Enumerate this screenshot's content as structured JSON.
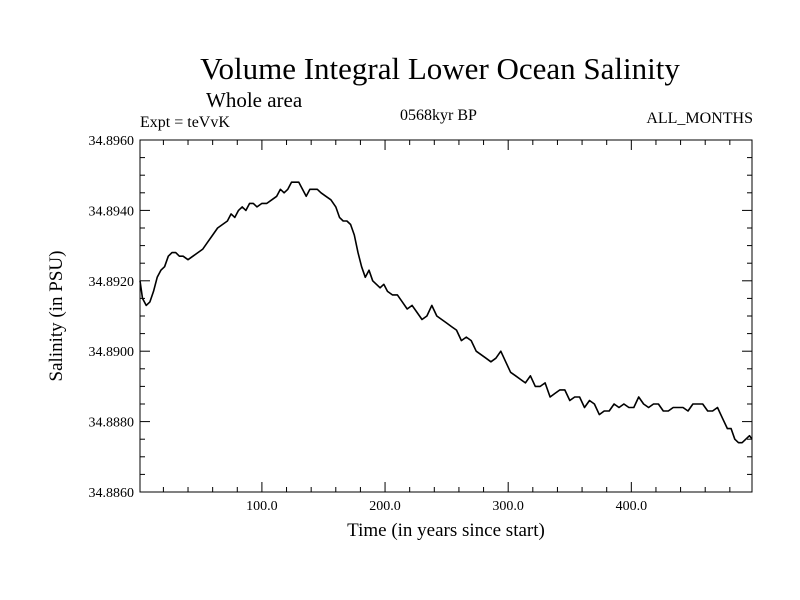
{
  "header": {
    "title": "Volume Integral Lower Ocean Salinity",
    "subtitle": "Whole area",
    "expt": "Expt = teVvK",
    "period": "0568kyr BP",
    "months": "ALL_MONTHS"
  },
  "colors": {
    "line": "#000000",
    "background": "#ffffff"
  },
  "chart_data": {
    "type": "line",
    "title": "Volume Integral Lower Ocean Salinity",
    "subtitle": "Whole area",
    "xlabel": "Time (in years since start)",
    "ylabel": "Salinity (in PSU)",
    "xlim": [
      1,
      498
    ],
    "ylim": [
      34.886,
      34.896
    ],
    "grid": false,
    "legend": "none",
    "x_ticks": [
      100,
      200,
      300,
      400
    ],
    "x_tick_labels": [
      "100.0",
      "200.0",
      "300.0",
      "400.0"
    ],
    "y_ticks": [
      34.886,
      34.888,
      34.89,
      34.892,
      34.894,
      34.896
    ],
    "y_tick_labels": [
      "34.8860",
      "34.8880",
      "34.8900",
      "34.8920",
      "34.8940",
      "34.8960"
    ],
    "series": [
      {
        "x": [
          1,
          3,
          6,
          9,
          12,
          15,
          18,
          21,
          24,
          27,
          30,
          33,
          36,
          40,
          44,
          48,
          52,
          56,
          60,
          64,
          68,
          72,
          75,
          78,
          81,
          84,
          87,
          90,
          93,
          96,
          100,
          104,
          108,
          112,
          115,
          118,
          121,
          124,
          127,
          130,
          133,
          136,
          139,
          142,
          145,
          148,
          152,
          156,
          160,
          163,
          166,
          169,
          172,
          175,
          178,
          181,
          184,
          187,
          190,
          193,
          196,
          199,
          202,
          206,
          210,
          214,
          218,
          222,
          226,
          230,
          234,
          238,
          242,
          246,
          250,
          254,
          258,
          262,
          266,
          270,
          274,
          278,
          282,
          286,
          290,
          294,
          298,
          302,
          306,
          310,
          314,
          318,
          322,
          326,
          330,
          334,
          338,
          342,
          346,
          350,
          354,
          358,
          362,
          366,
          370,
          374,
          378,
          382,
          386,
          390,
          394,
          398,
          402,
          406,
          410,
          414,
          418,
          422,
          426,
          430,
          434,
          438,
          442,
          446,
          450,
          454,
          458,
          462,
          466,
          470,
          474,
          478,
          481,
          484,
          487,
          490,
          493,
          496,
          498
        ],
        "y": [
          34.892,
          34.8915,
          34.8913,
          34.8914,
          34.8917,
          34.8921,
          34.8923,
          34.8924,
          34.8927,
          34.8928,
          34.8928,
          34.8927,
          34.8927,
          34.8926,
          34.8927,
          34.8928,
          34.8929,
          34.8931,
          34.8933,
          34.8935,
          34.8936,
          34.8937,
          34.8939,
          34.8938,
          34.894,
          34.8941,
          34.894,
          34.8942,
          34.8942,
          34.8941,
          34.8942,
          34.8942,
          34.8943,
          34.8944,
          34.8946,
          34.8945,
          34.8946,
          34.8948,
          34.8948,
          34.8948,
          34.8946,
          34.8944,
          34.8946,
          34.8946,
          34.8946,
          34.8945,
          34.8944,
          34.8943,
          34.8941,
          34.8938,
          34.8937,
          34.8937,
          34.8936,
          34.8933,
          34.8928,
          34.8924,
          34.8921,
          34.8923,
          34.892,
          34.8919,
          34.8918,
          34.8919,
          34.8917,
          34.8916,
          34.8916,
          34.8914,
          34.8912,
          34.8913,
          34.8911,
          34.8909,
          34.891,
          34.8913,
          34.891,
          34.8909,
          34.8908,
          34.8907,
          34.8906,
          34.8903,
          34.8904,
          34.8903,
          34.89,
          34.8899,
          34.8898,
          34.8897,
          34.8898,
          34.89,
          34.8897,
          34.8894,
          34.8893,
          34.8892,
          34.8891,
          34.8893,
          34.889,
          34.889,
          34.8891,
          34.8887,
          34.8888,
          34.8889,
          34.8889,
          34.8886,
          34.8887,
          34.8887,
          34.8884,
          34.8886,
          34.8885,
          34.8882,
          34.8883,
          34.8883,
          34.8885,
          34.8884,
          34.8885,
          34.8884,
          34.8884,
          34.8887,
          34.8885,
          34.8884,
          34.8885,
          34.8885,
          34.8883,
          34.8883,
          34.8884,
          34.8884,
          34.8884,
          34.8883,
          34.8885,
          34.8885,
          34.8885,
          34.8883,
          34.8883,
          34.8884,
          34.8881,
          34.8878,
          34.8878,
          34.8875,
          34.8874,
          34.8874,
          34.8875,
          34.8876,
          34.8875
        ]
      }
    ]
  }
}
